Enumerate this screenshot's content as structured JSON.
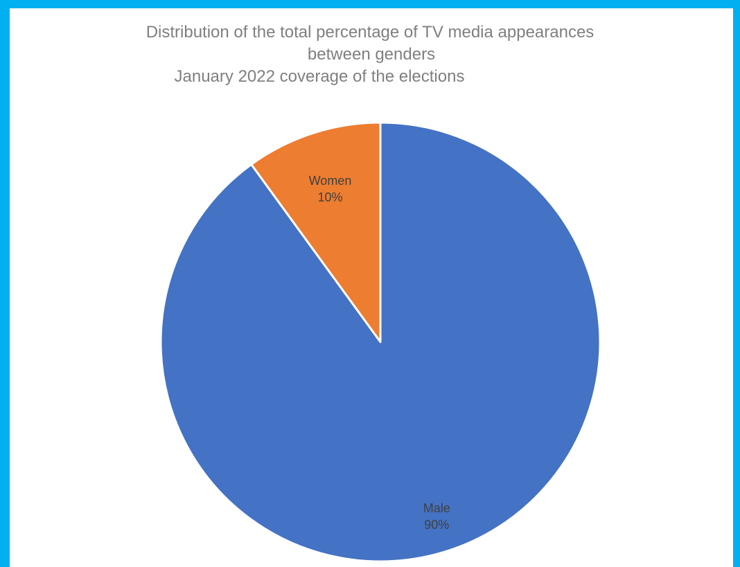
{
  "chart_data": {
    "type": "pie",
    "title": "Distribution of the total percentage of TV media appearances between genders",
    "title_lines": [
      "Distribution of the total percentage of TV media appearances",
      "between genders",
      "January 2022 coverage of the elections"
    ],
    "subtitle": "January 2022 coverage of the elections",
    "categories": [
      "Women",
      "Male"
    ],
    "values": [
      10,
      90
    ],
    "labels": [
      {
        "name": "Women",
        "percent": "10%"
      },
      {
        "name": "Male",
        "percent": "90%"
      }
    ],
    "colors": [
      "#ed7d31",
      "#4472c4"
    ],
    "start_angle_deg": 0,
    "direction": "counterclockwise",
    "legend": "none"
  },
  "colors": {
    "frame": "#00b0f0",
    "title": "#7f7f7f",
    "label": "#404040",
    "slice_border": "#ffffff"
  }
}
